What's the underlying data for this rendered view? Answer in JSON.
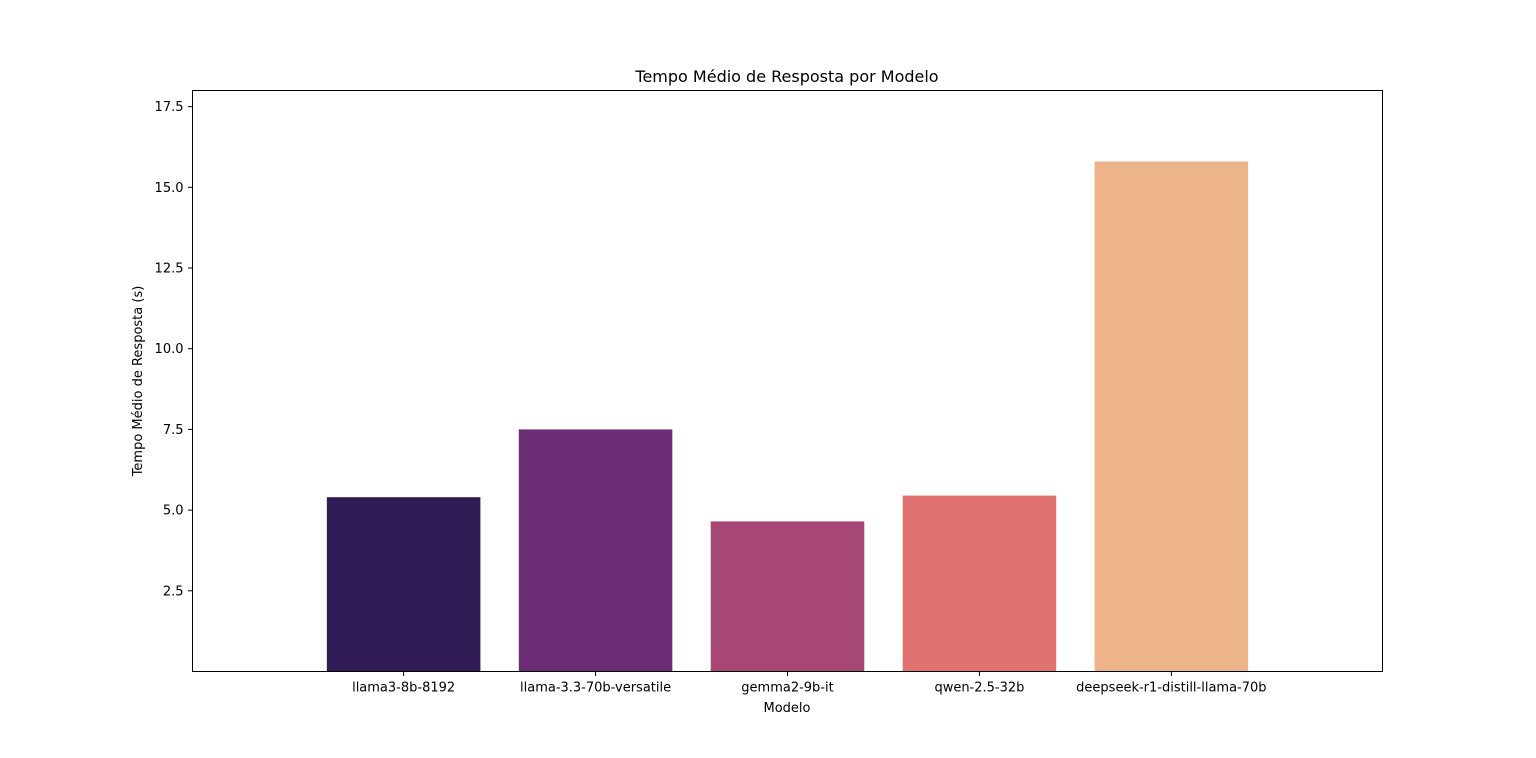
{
  "chart_data": {
    "type": "bar",
    "title": "Tempo Médio de Resposta por Modelo",
    "xlabel": "Modelo",
    "ylabel": "Tempo Médio de Resposta (s)",
    "categories": [
      "llama3-8b-8192",
      "llama-3.3-70b-versatile",
      "gemma2-9b-it",
      "qwen-2.5-32b",
      "deepseek-r1-distill-llama-70b"
    ],
    "values": [
      5.4,
      7.5,
      4.65,
      5.45,
      15.8
    ],
    "colors": [
      "#2f1c55",
      "#6b2b75",
      "#a64775",
      "#df7270",
      "#eeb489"
    ],
    "ylim": [
      0,
      18
    ],
    "yticks": [
      2.5,
      5.0,
      7.5,
      10.0,
      12.5,
      15.0,
      17.5
    ],
    "ytick_labels": [
      "2.5",
      "5.0",
      "7.5",
      "10.0",
      "12.5",
      "15.0",
      "17.5"
    ],
    "grid": false,
    "legend": false
  }
}
